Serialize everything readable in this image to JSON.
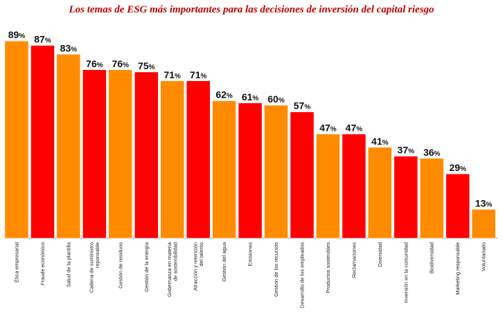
{
  "chart_data": {
    "type": "bar",
    "title": "Los temas de ESG más importantes para las decisiones de inversión del capital riesgo",
    "xlabel": "",
    "ylabel": "",
    "ylim": [
      0,
      100
    ],
    "grid": false,
    "legend": "none",
    "value_suffix": "%",
    "colors": {
      "orange": "#ff8c00",
      "red": "#ff0000"
    },
    "categories": [
      [
        "Ética empresarial"
      ],
      [
        "Fraude económico"
      ],
      [
        "Salud de la plantilla"
      ],
      [
        "Cadena de suministro",
        "reponsable"
      ],
      [
        "Gestión de residuos"
      ],
      [
        "Gestión de la energía"
      ],
      [
        "Gobernanza en materia",
        "de sostenibilidad"
      ],
      [
        "Atracción y retención",
        "del talento"
      ],
      [
        "Gestión del agua"
      ],
      [
        "Emisiones"
      ],
      [
        "Gestión de los recursos"
      ],
      [
        "Desarrollo de los empleados"
      ],
      [
        "Productos sostenibles"
      ],
      [
        "Reclamaciones"
      ],
      [
        "Diversidad"
      ],
      [
        "Inversión en la comunidad"
      ],
      [
        "Biodiversidad"
      ],
      [
        "Marketing responsable"
      ],
      [
        "Voluntariado"
      ]
    ],
    "values": [
      89,
      87,
      83,
      76,
      76,
      75,
      71,
      71,
      62,
      61,
      60,
      57,
      47,
      47,
      41,
      37,
      36,
      29,
      13
    ],
    "bar_colors": [
      "#ff8c00",
      "#ff0000",
      "#ff8c00",
      "#ff0000",
      "#ff8c00",
      "#ff0000",
      "#ff8c00",
      "#ff0000",
      "#ff8c00",
      "#ff0000",
      "#ff8c00",
      "#ff0000",
      "#ff8c00",
      "#ff0000",
      "#ff8c00",
      "#ff0000",
      "#ff8c00",
      "#ff0000",
      "#ff8c00"
    ]
  }
}
